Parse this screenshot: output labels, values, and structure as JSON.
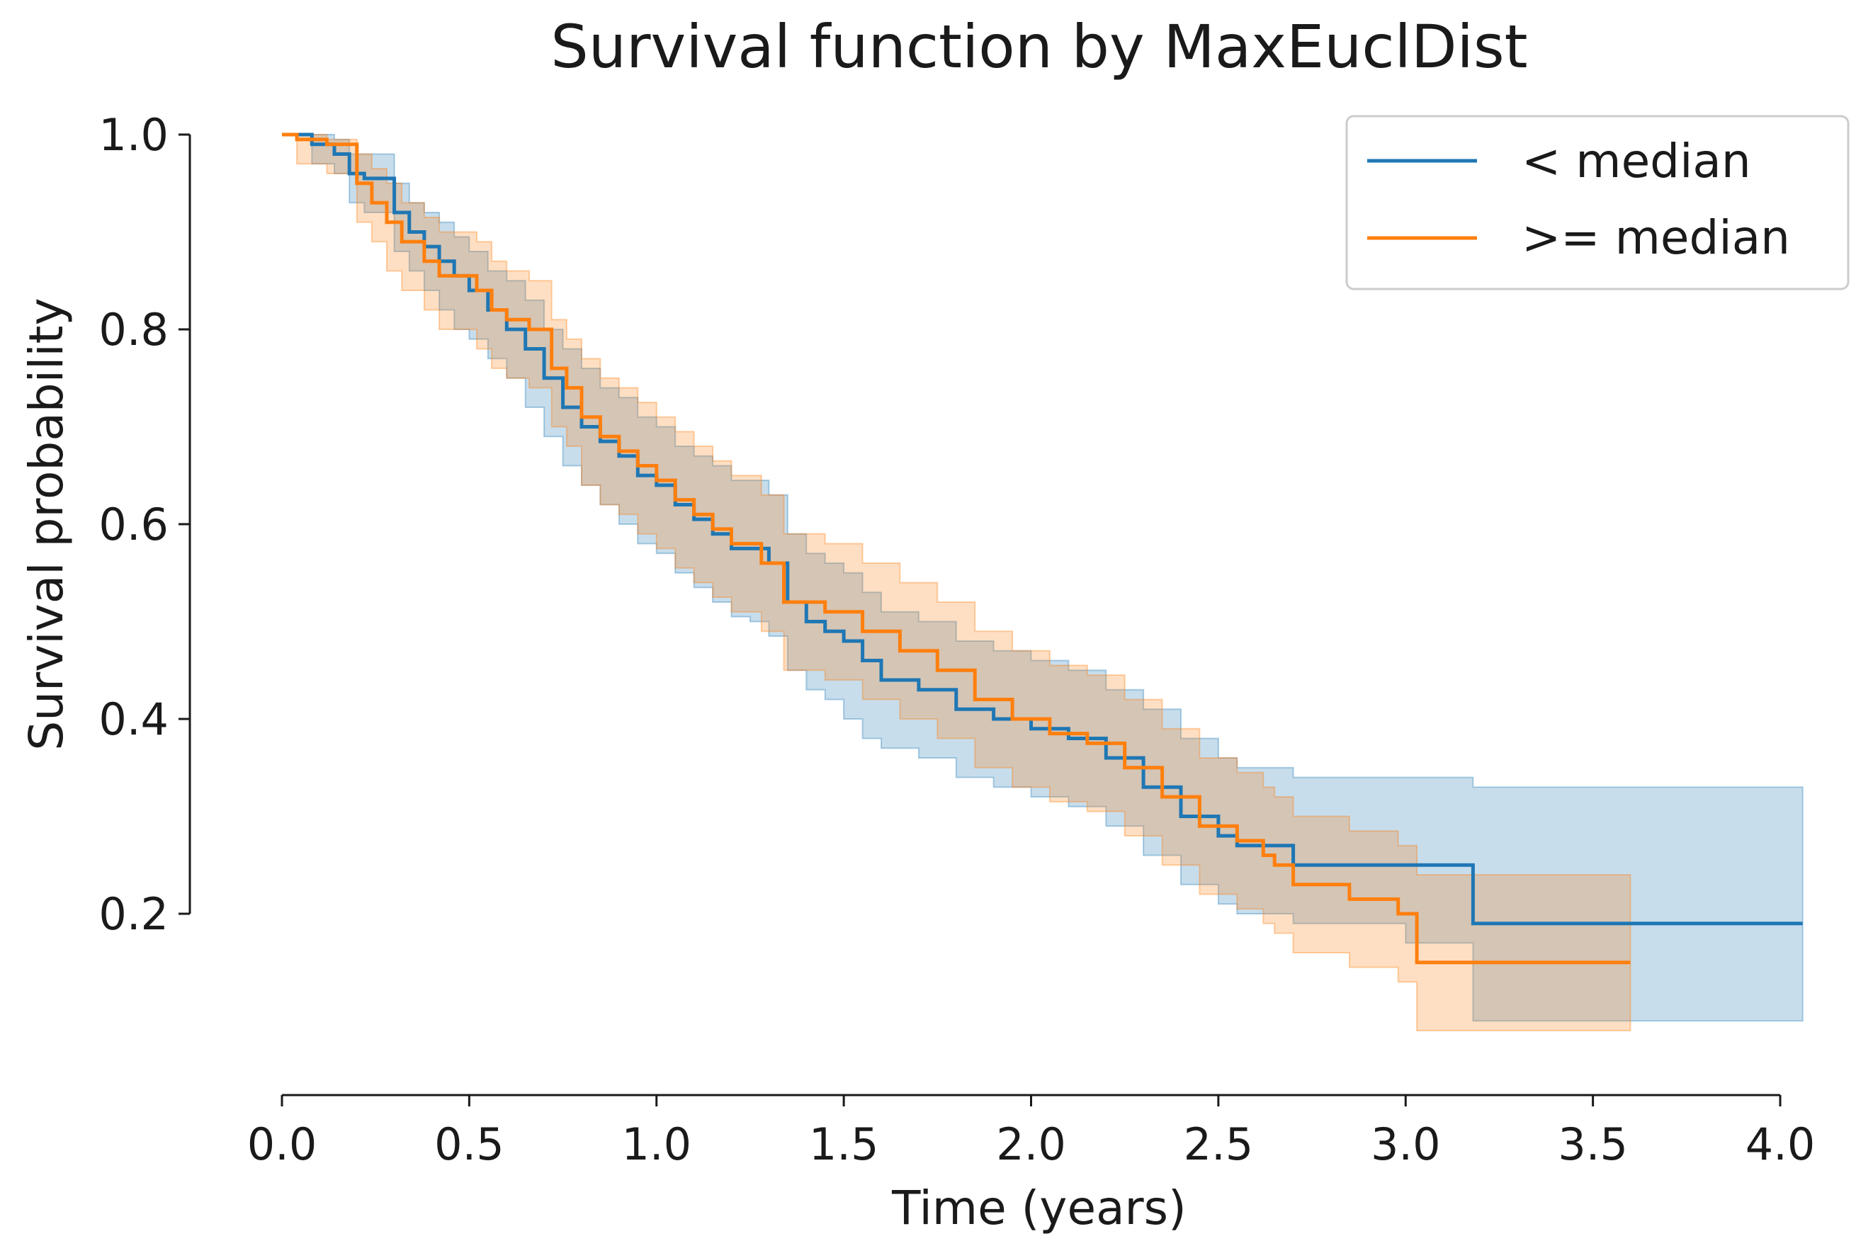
{
  "chart_data": {
    "type": "line",
    "title": "Survival function by MaxEuclDist",
    "xlabel": "Time (years)",
    "ylabel": "Survival probability",
    "xlim": [
      0.0,
      4.0
    ],
    "ylim": [
      0.0,
      1.0
    ],
    "x_ticks": [
      "0.0",
      "0.5",
      "1.0",
      "1.5",
      "2.0",
      "2.5",
      "3.0",
      "3.5",
      "4.0"
    ],
    "y_ticks": [
      "0.2",
      "0.4",
      "0.6",
      "0.8",
      "1.0"
    ],
    "grid": false,
    "legend_position": "top-right",
    "series": [
      {
        "name": "< median",
        "color": "#1f77b4",
        "x": [
          0.0,
          0.08,
          0.14,
          0.18,
          0.22,
          0.3,
          0.34,
          0.38,
          0.42,
          0.46,
          0.5,
          0.55,
          0.6,
          0.65,
          0.7,
          0.75,
          0.8,
          0.85,
          0.9,
          0.95,
          1.0,
          1.05,
          1.1,
          1.15,
          1.2,
          1.25,
          1.3,
          1.35,
          1.4,
          1.45,
          1.5,
          1.55,
          1.6,
          1.7,
          1.8,
          1.9,
          2.0,
          2.1,
          2.2,
          2.3,
          2.4,
          2.5,
          2.55,
          2.7,
          3.0,
          3.18,
          4.06
        ],
        "y": [
          1.0,
          0.99,
          0.98,
          0.96,
          0.955,
          0.92,
          0.9,
          0.885,
          0.87,
          0.855,
          0.84,
          0.82,
          0.8,
          0.78,
          0.75,
          0.72,
          0.7,
          0.685,
          0.67,
          0.65,
          0.64,
          0.62,
          0.605,
          0.59,
          0.575,
          0.575,
          0.56,
          0.52,
          0.5,
          0.49,
          0.48,
          0.46,
          0.44,
          0.43,
          0.41,
          0.4,
          0.39,
          0.38,
          0.36,
          0.33,
          0.3,
          0.28,
          0.27,
          0.25,
          0.25,
          0.19,
          0.19
        ],
        "ci_lower": [
          1.0,
          0.97,
          0.96,
          0.93,
          0.92,
          0.88,
          0.86,
          0.84,
          0.82,
          0.8,
          0.79,
          0.77,
          0.75,
          0.72,
          0.69,
          0.66,
          0.64,
          0.62,
          0.6,
          0.58,
          0.57,
          0.55,
          0.535,
          0.52,
          0.505,
          0.5,
          0.485,
          0.45,
          0.43,
          0.42,
          0.4,
          0.38,
          0.37,
          0.36,
          0.34,
          0.33,
          0.32,
          0.31,
          0.29,
          0.26,
          0.23,
          0.21,
          0.2,
          0.19,
          0.17,
          0.09,
          0.09
        ],
        "ci_upper": [
          1.0,
          1.0,
          0.995,
          0.98,
          0.98,
          0.95,
          0.93,
          0.92,
          0.91,
          0.895,
          0.88,
          0.86,
          0.85,
          0.83,
          0.8,
          0.78,
          0.76,
          0.74,
          0.73,
          0.71,
          0.7,
          0.68,
          0.67,
          0.66,
          0.645,
          0.645,
          0.63,
          0.59,
          0.57,
          0.56,
          0.55,
          0.53,
          0.51,
          0.5,
          0.48,
          0.47,
          0.46,
          0.45,
          0.43,
          0.41,
          0.38,
          0.36,
          0.35,
          0.34,
          0.34,
          0.33,
          0.33
        ]
      },
      {
        "name": ">= median",
        "color": "#ff7f0e",
        "x": [
          0.0,
          0.04,
          0.12,
          0.2,
          0.24,
          0.28,
          0.32,
          0.38,
          0.42,
          0.46,
          0.52,
          0.56,
          0.6,
          0.66,
          0.72,
          0.76,
          0.8,
          0.85,
          0.9,
          0.95,
          1.0,
          1.05,
          1.1,
          1.15,
          1.2,
          1.28,
          1.34,
          1.4,
          1.45,
          1.55,
          1.65,
          1.75,
          1.85,
          1.95,
          2.05,
          2.15,
          2.25,
          2.35,
          2.45,
          2.55,
          2.62,
          2.65,
          2.7,
          2.85,
          2.98,
          3.03,
          3.6
        ],
        "y": [
          1.0,
          0.995,
          0.99,
          0.95,
          0.93,
          0.91,
          0.89,
          0.87,
          0.855,
          0.855,
          0.84,
          0.82,
          0.81,
          0.8,
          0.76,
          0.74,
          0.71,
          0.69,
          0.675,
          0.66,
          0.645,
          0.625,
          0.61,
          0.595,
          0.58,
          0.56,
          0.52,
          0.52,
          0.51,
          0.49,
          0.47,
          0.45,
          0.42,
          0.4,
          0.385,
          0.375,
          0.35,
          0.32,
          0.29,
          0.275,
          0.26,
          0.25,
          0.23,
          0.215,
          0.2,
          0.15,
          0.15
        ],
        "ci_lower": [
          1.0,
          0.97,
          0.96,
          0.91,
          0.89,
          0.86,
          0.84,
          0.82,
          0.8,
          0.8,
          0.78,
          0.76,
          0.75,
          0.74,
          0.7,
          0.68,
          0.64,
          0.62,
          0.61,
          0.59,
          0.575,
          0.555,
          0.54,
          0.525,
          0.51,
          0.49,
          0.45,
          0.45,
          0.44,
          0.42,
          0.4,
          0.38,
          0.35,
          0.33,
          0.315,
          0.305,
          0.28,
          0.25,
          0.22,
          0.205,
          0.19,
          0.18,
          0.16,
          0.145,
          0.13,
          0.08,
          0.08
        ],
        "ci_upper": [
          1.0,
          1.0,
          0.995,
          0.98,
          0.965,
          0.95,
          0.93,
          0.915,
          0.9,
          0.9,
          0.89,
          0.87,
          0.86,
          0.85,
          0.81,
          0.79,
          0.77,
          0.75,
          0.74,
          0.725,
          0.71,
          0.695,
          0.68,
          0.665,
          0.65,
          0.63,
          0.59,
          0.59,
          0.58,
          0.56,
          0.54,
          0.52,
          0.49,
          0.47,
          0.455,
          0.445,
          0.42,
          0.39,
          0.36,
          0.345,
          0.33,
          0.32,
          0.3,
          0.285,
          0.27,
          0.24,
          0.24
        ]
      }
    ]
  }
}
